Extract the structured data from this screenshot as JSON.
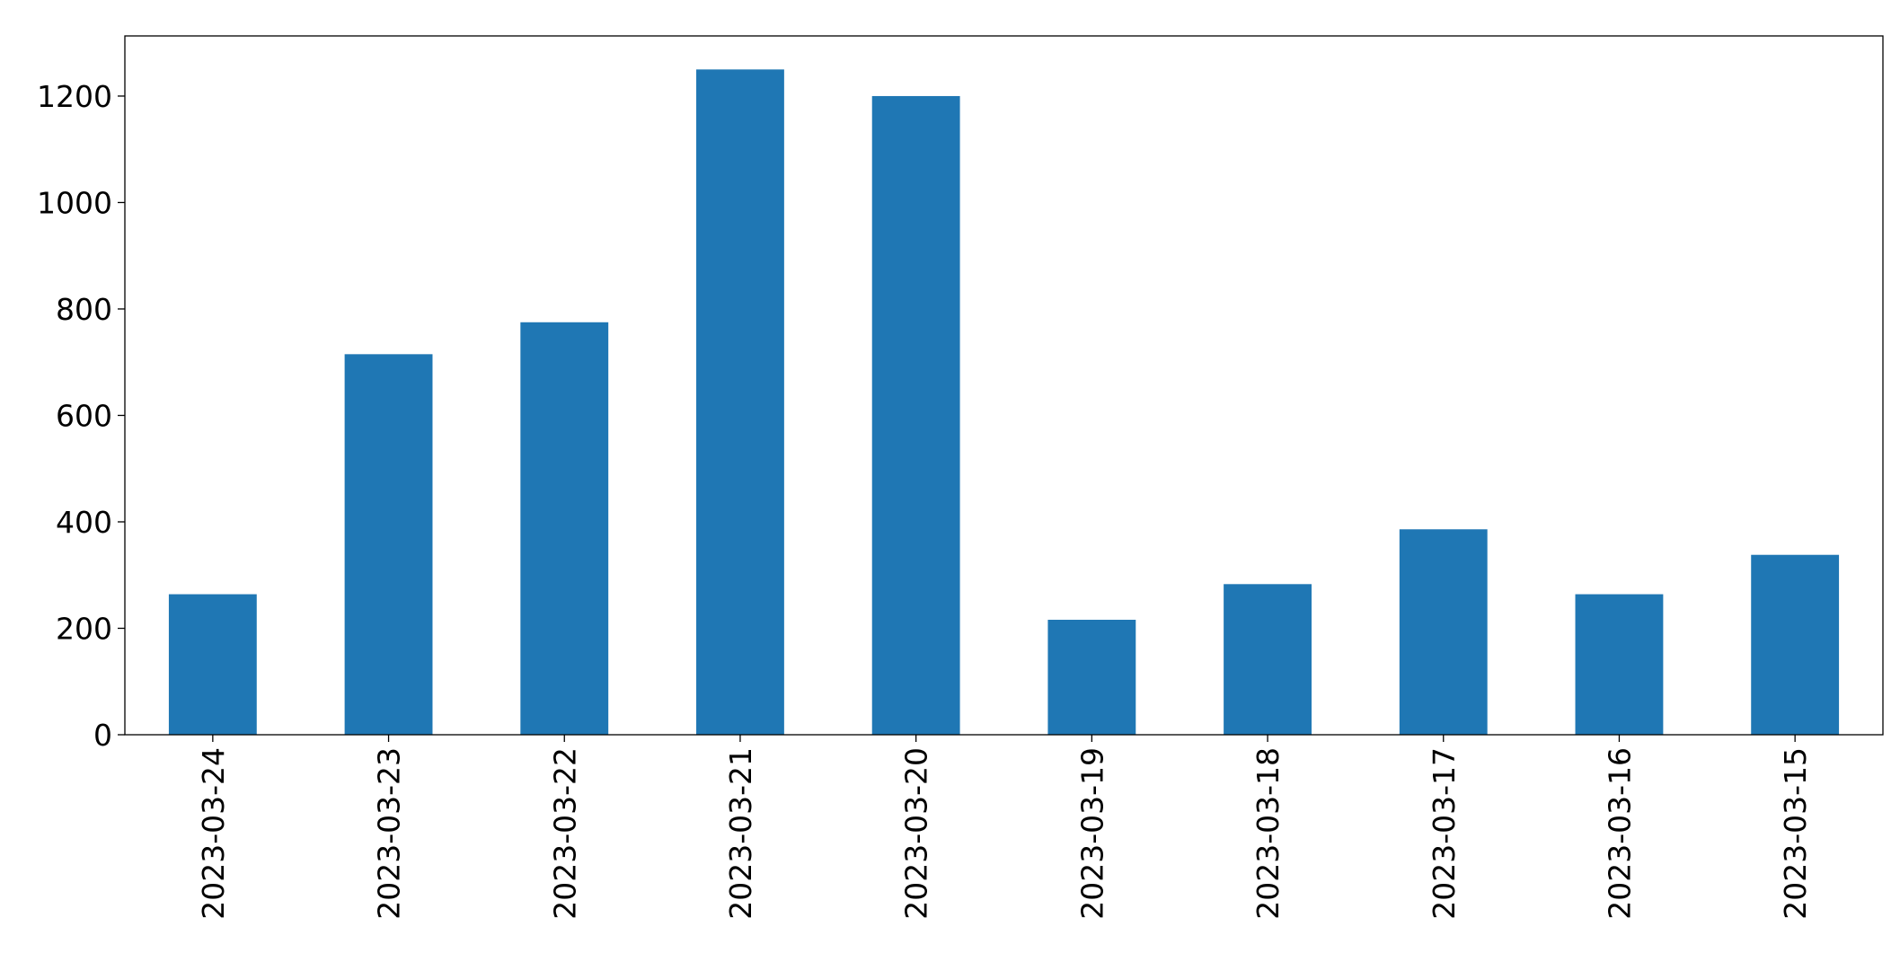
{
  "chart_data": {
    "type": "bar",
    "categories": [
      "2023-03-24",
      "2023-03-23",
      "2023-03-22",
      "2023-03-21",
      "2023-03-20",
      "2023-03-19",
      "2023-03-18",
      "2023-03-17",
      "2023-03-16",
      "2023-03-15"
    ],
    "values": [
      264,
      715,
      775,
      1250,
      1200,
      216,
      283,
      386,
      264,
      338
    ],
    "color": "#1f77b4",
    "ylim": [
      0,
      1313
    ],
    "yticks": [
      0,
      200,
      400,
      600,
      800,
      1000,
      1200
    ],
    "grid": false
  }
}
